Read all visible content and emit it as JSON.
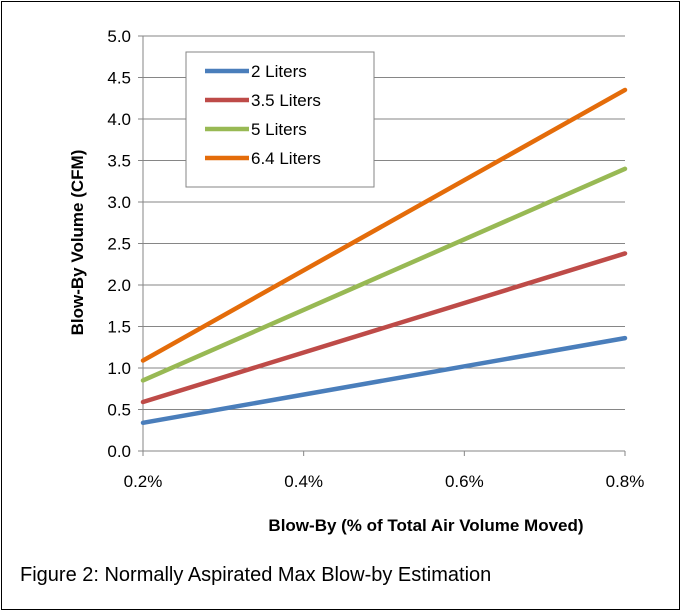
{
  "caption": "Figure 2: Normally Aspirated Max Blow-by Estimation",
  "chart_data": {
    "type": "line",
    "xlabel": "Blow-By (% of Total Air Volume Moved)",
    "ylabel": "Blow-By Volume (CFM)",
    "x": [
      0.2,
      0.8
    ],
    "x_tick_values": [
      0.2,
      0.4,
      0.6,
      0.8
    ],
    "x_tick_labels": [
      "0.2%",
      "0.4%",
      "0.6%",
      "0.8%"
    ],
    "xlim": [
      0.2,
      0.8
    ],
    "y_tick_values": [
      0.0,
      0.5,
      1.0,
      1.5,
      2.0,
      2.5,
      3.0,
      3.5,
      4.0,
      4.5,
      5.0
    ],
    "y_tick_labels": [
      "0.0",
      "0.5",
      "1.0",
      "1.5",
      "2.0",
      "2.5",
      "3.0",
      "3.5",
      "4.0",
      "4.5",
      "5.0"
    ],
    "ylim": [
      0,
      5
    ],
    "grid": "horizontal",
    "legend_position": "top-left",
    "series": [
      {
        "name": "2 Liters",
        "color": "#4a7ebb",
        "values": [
          0.34,
          1.36
        ]
      },
      {
        "name": "3.5 Liters",
        "color": "#be4b48",
        "values": [
          0.59,
          2.38
        ]
      },
      {
        "name": "5 Liters",
        "color": "#98b954",
        "values": [
          0.85,
          3.4
        ]
      },
      {
        "name": "6.4 Liters",
        "color": "#e46c0a",
        "values": [
          1.09,
          4.35
        ]
      }
    ]
  }
}
